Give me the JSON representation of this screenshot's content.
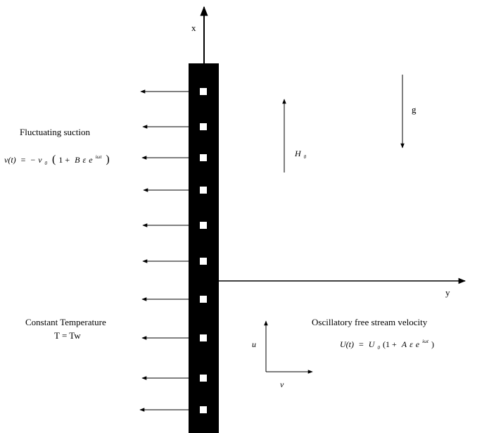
{
  "axes": {
    "x_label": "x",
    "y_label": "y"
  },
  "plate": {
    "hole_count": 10,
    "color": "#000000",
    "hole_color": "#ffffff"
  },
  "suction": {
    "title": "Fluctuating suction",
    "lhs": "v(t)",
    "equals": "=",
    "minus": "−",
    "v0": "v",
    "v0_sub": "0",
    "open": "(",
    "one_plus": "1 +",
    "B": "B",
    "eps": "ε",
    "e": "e",
    "exp": "iωt",
    "close": ")",
    "arrow_count": 10
  },
  "magnetic_field": {
    "symbol": "H",
    "sub": "0"
  },
  "gravity": {
    "symbol": "g"
  },
  "temperature": {
    "title": "Constant Temperature",
    "equation": "T = Tw"
  },
  "free_stream": {
    "title": "Oscillatory free stream velocity",
    "lhs": "U(t)",
    "equals": "=",
    "U0": "U",
    "U0_sub": "0",
    "open": "(1 +",
    "A": "A",
    "eps": "ε",
    "e": "e",
    "exp": "iωt",
    "close": ")"
  },
  "velocity_components": {
    "u": "u",
    "v": "v"
  }
}
